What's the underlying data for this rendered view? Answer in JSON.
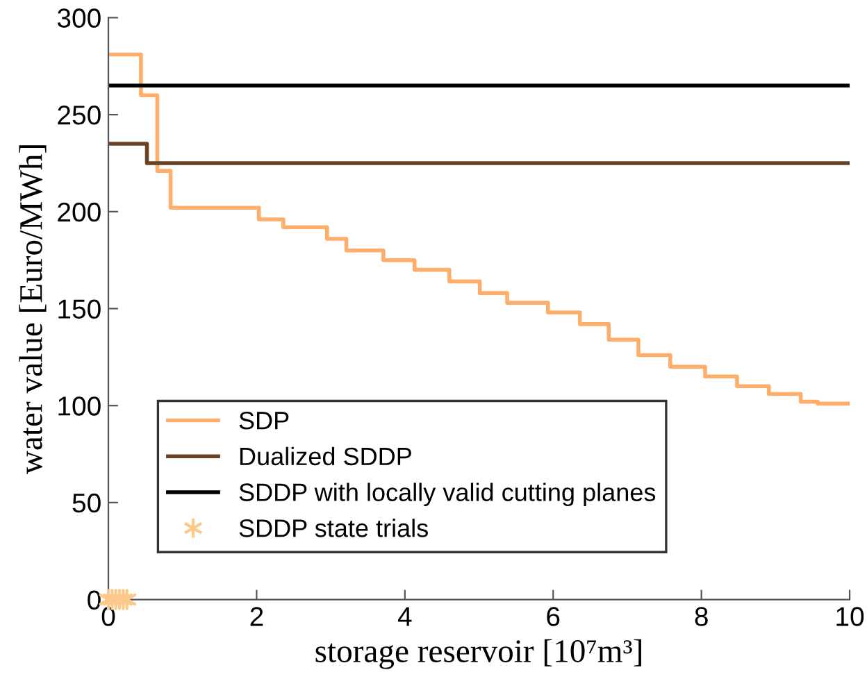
{
  "chart_data": {
    "type": "step",
    "xlabel": "storage reservoir [10⁷m³]",
    "ylabel": "water value [Euro/MWh]",
    "xlim": [
      0,
      10
    ],
    "ylim": [
      0,
      300
    ],
    "xticks": [
      0,
      2,
      4,
      6,
      8,
      10
    ],
    "yticks": [
      0,
      50,
      100,
      150,
      200,
      250,
      300
    ],
    "grid": false,
    "legend": "bottom left",
    "series": [
      {
        "name": "SDP",
        "color": "#fdae6b",
        "x": [
          0,
          0.44,
          0.66,
          0.84,
          2.03,
          2.36,
          2.95,
          3.21,
          3.71,
          4.13,
          4.6,
          5.01,
          5.38,
          5.93,
          6.36,
          6.75,
          7.15,
          7.58,
          8.05,
          8.48,
          8.91,
          9.34,
          9.57,
          10
        ],
        "values": [
          281,
          260,
          221,
          202,
          196,
          192,
          186,
          180,
          175,
          170,
          164,
          158,
          153,
          148,
          142,
          134,
          126,
          120,
          115,
          110,
          106,
          102,
          101,
          101
        ]
      },
      {
        "name": "Dualized SDDP",
        "color": "#6b4226",
        "x": [
          0,
          0.52,
          10
        ],
        "values": [
          235,
          225,
          225
        ]
      },
      {
        "name": "SDDP with locally valid cutting planes",
        "color": "#000000",
        "x": [
          0,
          10
        ],
        "values": [
          265,
          265
        ]
      },
      {
        "name": "SDDP state trials",
        "color": "#fdc98a",
        "type": "scatter",
        "marker": "cross",
        "x": [
          0,
          0.05,
          0.1,
          0.15,
          0.2,
          0.25
        ],
        "values": [
          0,
          0,
          0,
          0,
          0,
          0
        ]
      }
    ]
  }
}
